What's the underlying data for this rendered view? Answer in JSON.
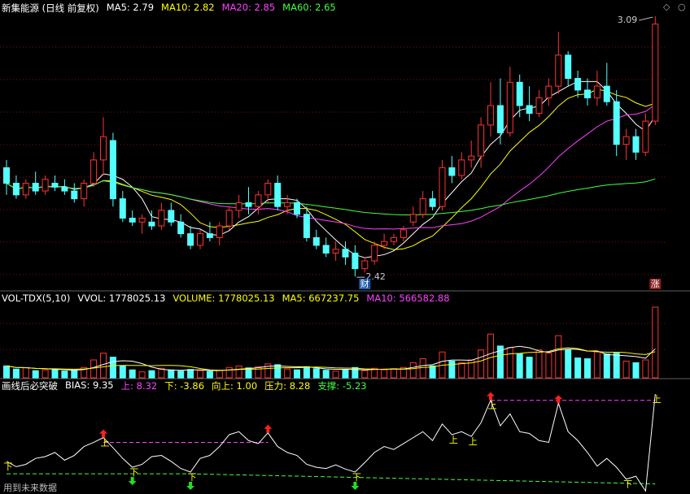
{
  "chart_data": [
    {
      "type": "candlestick",
      "title": "新集能源 (日线 前复权)",
      "legend": [
        {
          "text": "MA5: 2.79",
          "color": "#ffffff"
        },
        {
          "text": "MA10: 2.82",
          "color": "#ffff00"
        },
        {
          "text": "MA20: 2.85",
          "color": "#ff40ff"
        },
        {
          "text": "MA60: 2.65",
          "color": "#40ff40"
        }
      ],
      "up_color": "#ff3232",
      "down_color": "#54ffff",
      "ylim": [
        2.389,
        3.132
      ],
      "open": [
        2.7,
        2.66,
        2.63,
        2.66,
        2.64,
        2.66,
        2.65,
        2.64,
        2.62,
        2.66,
        2.72,
        2.77,
        2.62,
        2.57,
        2.56,
        2.56,
        2.55,
        2.59,
        2.56,
        2.53,
        2.5,
        2.53,
        2.52,
        2.55,
        2.59,
        2.61,
        2.6,
        2.63,
        2.66,
        2.6,
        2.61,
        2.58,
        2.52,
        2.5,
        2.48,
        2.49,
        2.48,
        2.44,
        2.46,
        2.5,
        2.51,
        2.52,
        2.56,
        2.58,
        2.62,
        2.6,
        2.7,
        2.68,
        2.72,
        2.73,
        2.81,
        2.86,
        2.79,
        2.92,
        2.86,
        2.84,
        2.88,
        2.91,
        2.99,
        2.93,
        2.9,
        2.88,
        2.91,
        2.87,
        2.76,
        2.78,
        2.74,
        2.82
      ],
      "high": [
        2.72,
        2.68,
        2.67,
        2.69,
        2.68,
        2.68,
        2.67,
        2.66,
        2.67,
        2.74,
        2.83,
        2.79,
        2.64,
        2.59,
        2.58,
        2.59,
        2.61,
        2.61,
        2.58,
        2.55,
        2.54,
        2.56,
        2.56,
        2.6,
        2.63,
        2.65,
        2.64,
        2.67,
        2.68,
        2.63,
        2.62,
        2.6,
        2.54,
        2.52,
        2.51,
        2.51,
        2.5,
        2.47,
        2.51,
        2.53,
        2.53,
        2.55,
        2.6,
        2.64,
        2.64,
        2.72,
        2.73,
        2.74,
        2.77,
        2.83,
        2.92,
        2.93,
        2.96,
        2.94,
        2.91,
        2.9,
        2.93,
        3.05,
        3.0,
        2.95,
        2.93,
        2.95,
        2.97,
        2.9,
        2.8,
        2.8,
        2.84,
        3.09
      ],
      "low": [
        2.63,
        2.62,
        2.62,
        2.63,
        2.63,
        2.64,
        2.63,
        2.61,
        2.6,
        2.65,
        2.68,
        2.6,
        2.56,
        2.55,
        2.53,
        2.54,
        2.54,
        2.55,
        2.52,
        2.49,
        2.49,
        2.51,
        2.5,
        2.54,
        2.57,
        2.58,
        2.58,
        2.61,
        2.59,
        2.58,
        2.57,
        2.51,
        2.49,
        2.47,
        2.46,
        2.45,
        2.42,
        2.43,
        2.45,
        2.49,
        2.5,
        2.51,
        2.55,
        2.57,
        2.59,
        2.59,
        2.66,
        2.67,
        2.7,
        2.7,
        2.78,
        2.76,
        2.78,
        2.83,
        2.82,
        2.83,
        2.86,
        2.89,
        2.91,
        2.88,
        2.86,
        2.86,
        2.86,
        2.73,
        2.72,
        2.72,
        2.73,
        2.81
      ],
      "close": [
        2.66,
        2.63,
        2.66,
        2.64,
        2.67,
        2.65,
        2.64,
        2.62,
        2.66,
        2.72,
        2.78,
        2.62,
        2.57,
        2.56,
        2.57,
        2.55,
        2.59,
        2.56,
        2.53,
        2.5,
        2.53,
        2.52,
        2.55,
        2.59,
        2.61,
        2.6,
        2.63,
        2.66,
        2.6,
        2.61,
        2.58,
        2.52,
        2.5,
        2.48,
        2.49,
        2.47,
        2.44,
        2.46,
        2.5,
        2.51,
        2.52,
        2.54,
        2.58,
        2.62,
        2.6,
        2.7,
        2.68,
        2.72,
        2.73,
        2.81,
        2.86,
        2.79,
        2.92,
        2.86,
        2.84,
        2.88,
        2.91,
        2.99,
        2.93,
        2.9,
        2.88,
        2.91,
        2.87,
        2.76,
        2.78,
        2.74,
        2.82,
        3.07
      ],
      "high_label": {
        "value": 3.09,
        "index": 67
      },
      "low_label": {
        "value": 2.42,
        "index": 36
      },
      "badges": [
        {
          "text": "财",
          "index": 37,
          "color": "#1e5aa8"
        },
        {
          "text": "涨",
          "index": 67,
          "color": "#8a1e1e"
        }
      ]
    },
    {
      "type": "bar",
      "legend": [
        {
          "text": "VOL-TDX(5,10)",
          "color": "#ffffff"
        },
        {
          "text": "VVOL: 1778025.13",
          "color": "#ffffff"
        },
        {
          "text": "VOLUME: 1778025.13",
          "color": "#ffff00"
        },
        {
          "text": "MA5: 667237.75",
          "color": "#ffff00"
        },
        {
          "text": "MA10: 566582.88",
          "color": "#ff40ff"
        }
      ],
      "ylim": [
        0,
        1840000
      ],
      "values": [
        300000,
        220000,
        250000,
        180000,
        200000,
        220000,
        170000,
        190000,
        260000,
        450000,
        620000,
        520000,
        300000,
        200000,
        150000,
        180000,
        240000,
        200000,
        170000,
        210000,
        180000,
        160000,
        190000,
        260000,
        300000,
        250000,
        280000,
        350000,
        330000,
        220000,
        200000,
        280000,
        230000,
        190000,
        170000,
        200000,
        260000,
        180000,
        240000,
        200000,
        230000,
        260000,
        380000,
        480000,
        300000,
        650000,
        420000,
        380000,
        450000,
        700000,
        1100000,
        800000,
        760000,
        600000,
        520000,
        700000,
        620000,
        1060000,
        700000,
        500000,
        480000,
        650000,
        600000,
        620000,
        420000,
        380000,
        450000,
        1778025.13
      ]
    },
    {
      "type": "line",
      "legend": [
        {
          "text": "画线后必突破",
          "color": "#ffffff"
        },
        {
          "text": "BIAS: 9.35",
          "color": "#ffffff"
        },
        {
          "text": "上: 8.32",
          "color": "#ff40ff"
        },
        {
          "text": "下: -3.86",
          "color": "#ffff00"
        },
        {
          "text": "向上: 1.00",
          "color": "#ffff00"
        },
        {
          "text": "压力: 8.28",
          "color": "#ffff00"
        },
        {
          "text": "支撑: -5.23",
          "color": "#40ff40"
        }
      ],
      "ylim": [
        -7.5,
        10.3
      ],
      "color": "#ffffff",
      "values": [
        -2.0,
        -2.9,
        -2.5,
        -1.5,
        -1.2,
        -0.5,
        -1.8,
        -1.0,
        0.5,
        1.2,
        2.0,
        0.3,
        -1.5,
        -3.0,
        -2.5,
        -1.2,
        -1.0,
        -2.0,
        -3.2,
        -3.8,
        -1.5,
        -1.0,
        0.5,
        2.5,
        3.0,
        1.5,
        1.0,
        2.8,
        0.5,
        -0.5,
        -1.0,
        -2.5,
        -3.0,
        -3.2,
        -2.6,
        -3.3,
        -3.8,
        -2.2,
        -0.5,
        0.5,
        0.0,
        1.0,
        2.0,
        3.0,
        1.5,
        4.3,
        2.5,
        3.0,
        2.2,
        4.5,
        8.3,
        4.0,
        6.0,
        3.0,
        2.7,
        1.5,
        1.2,
        7.8,
        3.0,
        1.5,
        -0.5,
        -2.8,
        -1.5,
        -3.0,
        -5.0,
        -4.5,
        -7.0,
        9.35
      ],
      "levels": [
        {
          "from": [
            10,
            1.2
          ],
          "to": [
            27,
            1.2
          ],
          "color": "#ff40ff"
        },
        {
          "from": [
            50,
            8.28
          ],
          "to": [
            67,
            8.28
          ],
          "color": "#ff40ff"
        },
        {
          "from": [
            0,
            -4.1
          ],
          "to": [
            19,
            -4.1
          ],
          "color": "#40ff40"
        },
        {
          "from": [
            19,
            -4.1
          ],
          "to": [
            67,
            -5.8
          ],
          "color": "#40ff40"
        }
      ],
      "arrows": [
        {
          "index": 10,
          "dir": "up"
        },
        {
          "index": 27,
          "dir": "up"
        },
        {
          "index": 50,
          "dir": "up"
        },
        {
          "index": 57,
          "dir": "up"
        },
        {
          "index": 13,
          "dir": "down"
        },
        {
          "index": 19,
          "dir": "down"
        },
        {
          "index": 36,
          "dir": "down"
        }
      ],
      "signals": [
        {
          "index": 0,
          "text": "下"
        },
        {
          "index": 13,
          "text": "下"
        },
        {
          "index": 19,
          "text": "下"
        },
        {
          "index": 36,
          "text": "下"
        },
        {
          "index": 64,
          "text": "下"
        },
        {
          "index": 10,
          "text": "上"
        },
        {
          "index": 46,
          "text": "上"
        },
        {
          "index": 48,
          "text": "上"
        },
        {
          "index": 50,
          "text": "上"
        },
        {
          "index": 67,
          "text": "上"
        }
      ],
      "footnote": "用到未来数据"
    }
  ]
}
